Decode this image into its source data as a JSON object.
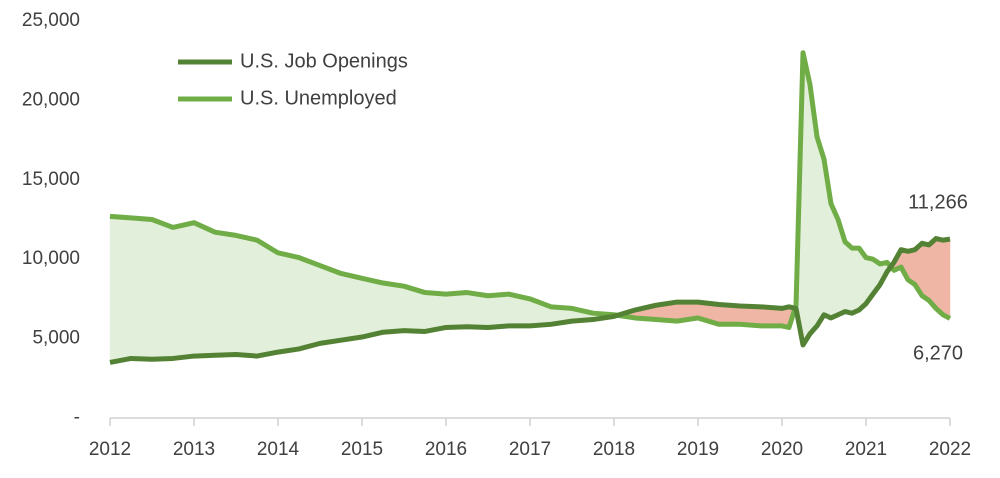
{
  "chart_data": {
    "type": "line",
    "x": [
      2012,
      2012.25,
      2012.5,
      2012.75,
      2013,
      2013.25,
      2013.5,
      2013.75,
      2014,
      2014.25,
      2014.5,
      2014.75,
      2015,
      2015.25,
      2015.5,
      2015.75,
      2016,
      2016.25,
      2016.5,
      2016.75,
      2017,
      2017.25,
      2017.5,
      2017.75,
      2018,
      2018.25,
      2018.5,
      2018.75,
      2019,
      2019.25,
      2019.5,
      2019.75,
      2020,
      2020.083,
      2020.167,
      2020.25,
      2020.333,
      2020.417,
      2020.5,
      2020.583,
      2020.667,
      2020.75,
      2020.833,
      2020.917,
      2021,
      2021.083,
      2021.167,
      2021.25,
      2021.333,
      2021.417,
      2021.5,
      2021.583,
      2021.667,
      2021.75,
      2021.833,
      2021.917,
      2022
    ],
    "series": [
      {
        "name": "U.S. Job Openings",
        "color": "#548235",
        "values": [
          3500,
          3750,
          3700,
          3750,
          3900,
          3950,
          4000,
          3900,
          4150,
          4350,
          4700,
          4900,
          5100,
          5400,
          5500,
          5450,
          5700,
          5750,
          5700,
          5800,
          5800,
          5900,
          6100,
          6200,
          6400,
          6800,
          7100,
          7300,
          7300,
          7150,
          7050,
          7000,
          6900,
          7000,
          6900,
          4600,
          5300,
          5800,
          6500,
          6300,
          6500,
          6700,
          6600,
          6800,
          7200,
          7800,
          8400,
          9200,
          9800,
          10600,
          10500,
          10600,
          11000,
          10900,
          11300,
          11200,
          11266
        ]
      },
      {
        "name": "U.S. Unemployed",
        "color": "#70ad47",
        "values": [
          12700,
          12600,
          12500,
          12000,
          12300,
          11700,
          11500,
          11200,
          10400,
          10100,
          9600,
          9100,
          8800,
          8500,
          8300,
          7900,
          7800,
          7900,
          7700,
          7800,
          7500,
          7000,
          6900,
          6600,
          6500,
          6300,
          6200,
          6100,
          6300,
          5900,
          5900,
          5800,
          5800,
          5700,
          7100,
          23000,
          21000,
          17700,
          16300,
          13500,
          12500,
          11100,
          10700,
          10700,
          10100,
          10000,
          9700,
          9800,
          9300,
          9500,
          8700,
          8400,
          7700,
          7400,
          6900,
          6500,
          6270
        ]
      }
    ],
    "fill_colors": {
      "above": "#e2efda",
      "below": "#efb6a6"
    },
    "xlim": [
      2012,
      2022
    ],
    "xticks": [
      2012,
      2013,
      2014,
      2015,
      2016,
      2017,
      2018,
      2019,
      2020,
      2021,
      2022
    ],
    "ylim": [
      0,
      25000
    ],
    "yticks": [
      {
        "value": 0,
        "label": "-"
      },
      {
        "value": 5000,
        "label": "5,000"
      },
      {
        "value": 10000,
        "label": "10,000"
      },
      {
        "value": 15000,
        "label": "15,000"
      },
      {
        "value": 20000,
        "label": "20,000"
      },
      {
        "value": 25000,
        "label": "25,000"
      }
    ],
    "annotations": [
      {
        "text": "11,266",
        "x": 2022,
        "y": 11266
      },
      {
        "text": "6,270",
        "x": 2022,
        "y": 6270
      }
    ]
  }
}
